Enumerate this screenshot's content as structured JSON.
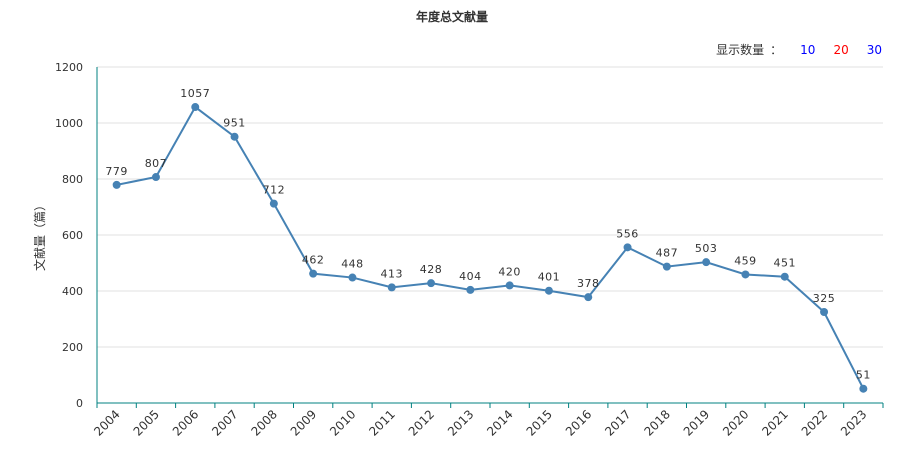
{
  "chart_data": {
    "type": "line",
    "title": "年度总文献量",
    "xlabel": "",
    "ylabel": "文献量（篇）",
    "categories": [
      "2004",
      "2005",
      "2006",
      "2007",
      "2008",
      "2009",
      "2010",
      "2011",
      "2012",
      "2013",
      "2014",
      "2015",
      "2016",
      "2017",
      "2018",
      "2019",
      "2020",
      "2021",
      "2022",
      "2023"
    ],
    "values": [
      779,
      807,
      1057,
      951,
      712,
      462,
      448,
      413,
      428,
      404,
      420,
      401,
      378,
      556,
      487,
      503,
      459,
      451,
      325,
      51
    ],
    "ylim": [
      0,
      1200
    ],
    "yticks": [
      0,
      200,
      400,
      600,
      800,
      1000,
      1200
    ],
    "grid": true,
    "colors": {
      "line": "#4682b4",
      "axis": "#008080",
      "grid": "#e0e0e0"
    }
  },
  "controls": {
    "label": "显示数量",
    "colon": "：",
    "options": [
      {
        "label": "10",
        "color": "#0000ff"
      },
      {
        "label": "20",
        "color": "#ff0000"
      },
      {
        "label": "30",
        "color": "#0000ff"
      }
    ]
  }
}
